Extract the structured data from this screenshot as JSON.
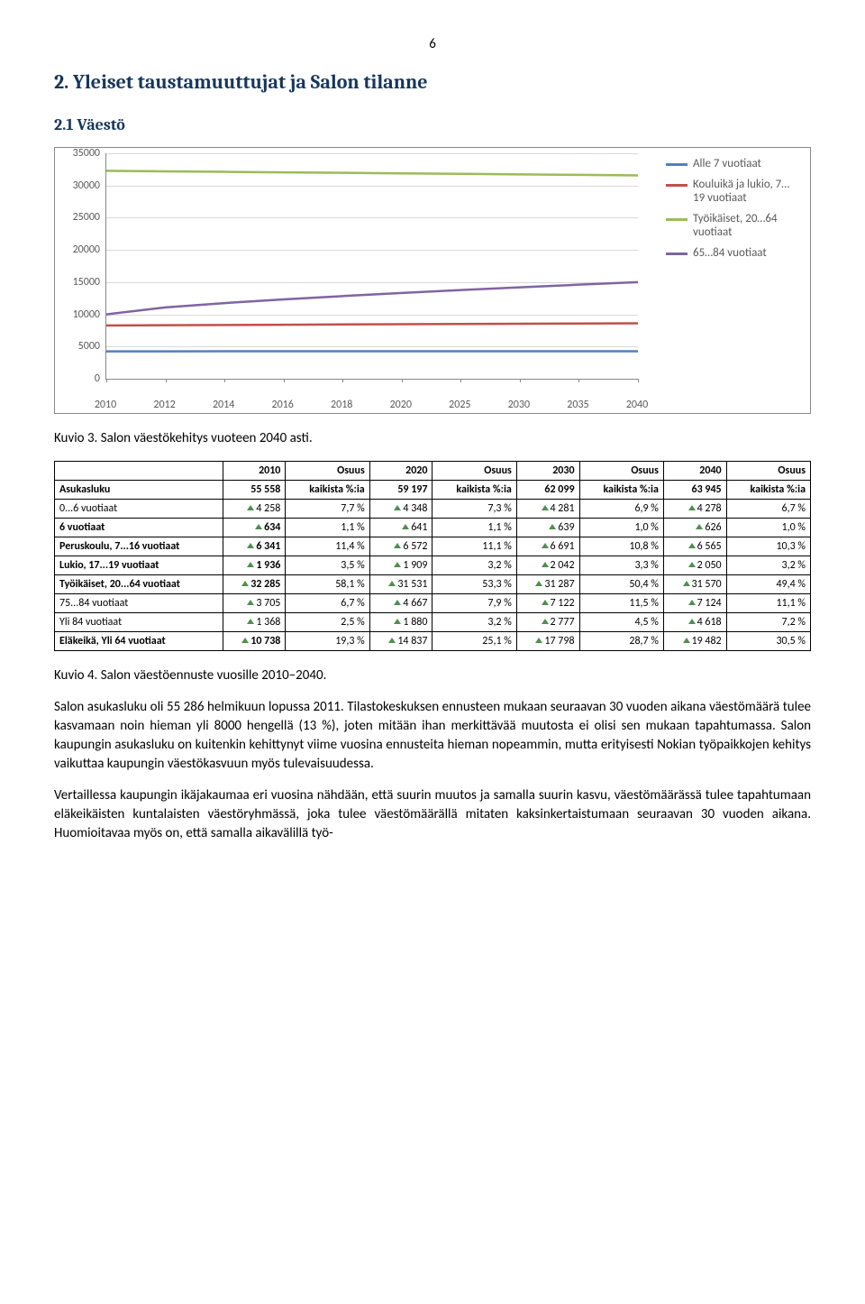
{
  "page_number": "6",
  "section_title": "2. Yleiset taustamuuttujat ja Salon tilanne",
  "subsection_title": "2.1 Väestö",
  "chart": {
    "y_ticks": [
      "0",
      "5000",
      "10000",
      "15000",
      "20000",
      "25000",
      "30000",
      "35000"
    ],
    "y_max": 35000,
    "x_labels": [
      "2010",
      "2012",
      "2014",
      "2016",
      "2018",
      "2020",
      "2025",
      "2030",
      "2035",
      "2040"
    ],
    "series": [
      {
        "name": "Alle 7 vuotiaat",
        "color": "#4f81bd",
        "y_start": 4258,
        "y_end": 4278,
        "slope": 0
      },
      {
        "name": "Kouluikä ja lukio, 7…19 vuotiaat",
        "color": "#c0504d",
        "y_start": 8277,
        "y_end": 8615,
        "slope": 0.01
      },
      {
        "name": "Työikäiset, 20…64 vuotiaat",
        "color": "#9bbb59",
        "y_start": 32285,
        "y_end": 31570,
        "slope": -0.02
      },
      {
        "name": "65…84 vuotiaat",
        "color": "#8064a2",
        "y_start": 10000,
        "y_end": 15000,
        "slope": 0.5
      }
    ]
  },
  "caption_chart": "Kuvio 3. Salon väestökehitys vuoteen 2040 asti.",
  "table": {
    "col_headers": [
      "",
      "2010",
      "Osuus",
      "2020",
      "Osuus",
      "2030",
      "Osuus",
      "2040",
      "Osuus"
    ],
    "rows": [
      {
        "label": "Asukasluku",
        "bold": true,
        "cells": [
          "55 558",
          "kaikista %:ia",
          "59 197",
          "kaikista %:ia",
          "62 099",
          "kaikista %:ia",
          "63 945",
          "kaikista %:ia"
        ],
        "tri": [
          false,
          false,
          false,
          false,
          false,
          false,
          false,
          false
        ]
      },
      {
        "label": "0...6 vuotiaat",
        "bold": false,
        "cells": [
          "4 258",
          "7,7 %",
          "4 348",
          "7,3 %",
          "4 281",
          "6,9 %",
          "4 278",
          "6,7 %"
        ],
        "tri": [
          true,
          false,
          true,
          false,
          true,
          false,
          true,
          false
        ]
      },
      {
        "label": "6 vuotiaat",
        "bold": true,
        "cells": [
          "634",
          "1,1 %",
          "641",
          "1,1 %",
          "639",
          "1,0 %",
          "626",
          "1,0 %"
        ],
        "tri": [
          true,
          false,
          true,
          false,
          true,
          false,
          true,
          false
        ]
      },
      {
        "label": "Peruskoulu, 7...16 vuotiaat",
        "bold": true,
        "cells": [
          "6 341",
          "11,4 %",
          "6 572",
          "11,1 %",
          "6 691",
          "10,8 %",
          "6 565",
          "10,3 %"
        ],
        "tri": [
          true,
          false,
          true,
          false,
          true,
          false,
          true,
          false
        ]
      },
      {
        "label": "Lukio, 17...19 vuotiaat",
        "bold": true,
        "cells": [
          "1 936",
          "3,5 %",
          "1 909",
          "3,2 %",
          "2 042",
          "3,3 %",
          "2 050",
          "3,2 %"
        ],
        "tri": [
          true,
          false,
          true,
          false,
          true,
          false,
          true,
          false
        ]
      },
      {
        "label": "Työikäiset, 20...64 vuotiaat",
        "bold": true,
        "cells": [
          "32 285",
          "58,1 %",
          "31 531",
          "53,3 %",
          "31 287",
          "50,4 %",
          "31 570",
          "49,4 %"
        ],
        "tri": [
          true,
          false,
          true,
          false,
          true,
          false,
          true,
          false
        ]
      },
      {
        "label": "75...84 vuotiaat",
        "bold": false,
        "cells": [
          "3 705",
          "6,7 %",
          "4 667",
          "7,9 %",
          "7 122",
          "11,5 %",
          "7 124",
          "11,1 %"
        ],
        "tri": [
          true,
          false,
          true,
          false,
          true,
          false,
          true,
          false
        ]
      },
      {
        "label": "Yli 84 vuotiaat",
        "bold": false,
        "cells": [
          "1 368",
          "2,5 %",
          "1 880",
          "3,2 %",
          "2 777",
          "4,5 %",
          "4 618",
          "7,2 %"
        ],
        "tri": [
          true,
          false,
          true,
          false,
          true,
          false,
          true,
          false
        ]
      },
      {
        "label": "Eläkeikä, Yli 64 vuotiaat",
        "bold": true,
        "cells": [
          "10 738",
          "19,3 %",
          "14 837",
          "25,1 %",
          "17 798",
          "28,7 %",
          "19 482",
          "30,5 %"
        ],
        "tri": [
          true,
          false,
          true,
          false,
          true,
          false,
          true,
          false
        ]
      }
    ]
  },
  "caption_table": "Kuvio 4. Salon väestöennuste vuosille 2010–2040.",
  "paragraphs": [
    "Salon asukasluku oli 55 286 helmikuun lopussa 2011. Tilastokeskuksen ennusteen mukaan seuraavan 30 vuoden aikana väestömäärä tulee kasvamaan noin hieman yli 8000 hengellä (13 %), joten mitään ihan merkittävää muutosta ei olisi sen mukaan tapahtumassa. Salon kaupungin asukasluku on kuitenkin kehittynyt viime vuosina ennusteita hieman nopeammin, mutta erityisesti Nokian työpaikkojen kehitys vaikuttaa kaupungin väestökasvuun myös tulevaisuudessa.",
    "Vertaillessa kaupungin ikäjakaumaa eri vuosina nähdään, että suurin muutos ja samalla suurin kasvu, väestömäärässä tulee tapahtumaan eläkeikäisten kuntalaisten väestöryhmässä, joka tulee väestömäärällä mitaten kaksinkertaistumaan seuraavan 30 vuoden aikana. Huomioitavaa myös on, että samalla aikavälillä työ-"
  ]
}
